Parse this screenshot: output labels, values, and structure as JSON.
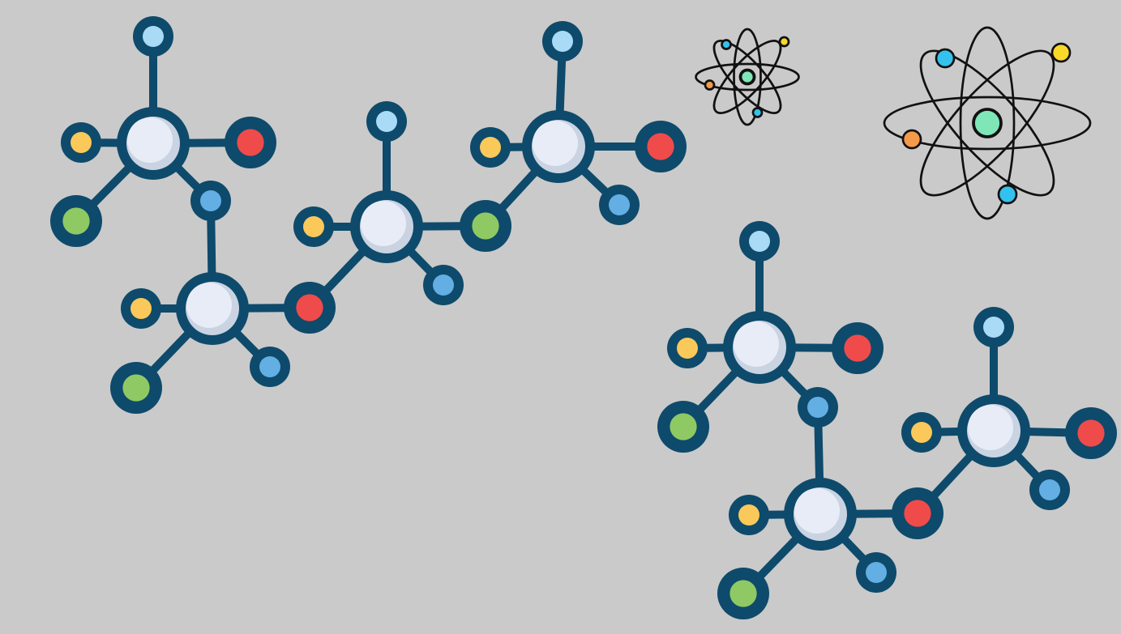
{
  "colors": {
    "background": "#cacaca",
    "bond": "#0e4a6b",
    "central_atom": "#e8ecf6",
    "central_atom_shade": "#c9d3e2",
    "oxygen": "#ef4b4b",
    "green_atom": "#8fc963",
    "yellow_atom": "#fbc85a",
    "blue_atom": "#63aee3",
    "light_blue_atom": "#a9daf6",
    "orbit": "#111111",
    "nucleus": "#7fe6b8",
    "electron_yellow": "#f8d92a",
    "electron_cyan": "#33c2ee",
    "electron_orange": "#f59a4a"
  },
  "icons": {
    "molecule_chains": [
      "molecule-chain-icon",
      "molecule-chain-icon"
    ],
    "atoms": [
      "atom-icon",
      "atom-icon"
    ]
  }
}
